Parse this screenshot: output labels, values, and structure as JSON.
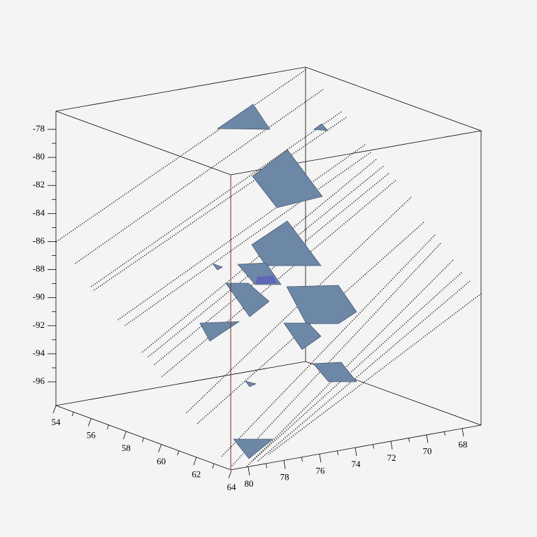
{
  "axes": {
    "z": {
      "ticks": [
        -78,
        -80,
        -82,
        -84,
        -86,
        -88,
        -90,
        -92,
        -94,
        -96
      ]
    },
    "x": {
      "ticks": [
        54,
        56,
        58,
        60,
        62,
        64
      ]
    },
    "y": {
      "ticks": [
        80,
        78,
        76,
        74,
        72,
        70,
        68
      ]
    }
  }
}
